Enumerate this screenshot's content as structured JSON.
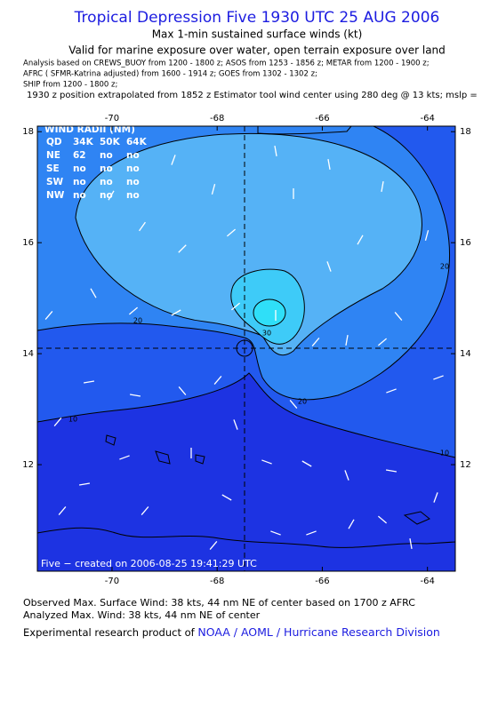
{
  "header": {
    "title": "Tropical Depression Five 1930 UTC 25 AUG 2006",
    "subtitle": "Max 1-min sustained surface winds (kt)",
    "validity": "Valid for marine exposure over water, open terrain exposure over land",
    "analysis_lines": [
      "Analysis based on  CREWS_BUOY from 1200 - 1800 z;  ASOS from 1253 - 1856 z;  METAR from 1200 - 1900 z;",
      "AFRC ( SFMR-Katrina adjusted) from 1600 - 1914 z;  GOES from 1302 - 1302 z;",
      "SHIP from 1200 - 1800 z;",
      "1930 z position extrapolated from 1852 z Estimator tool wind center using 280 deg @ 13 kts; mslp ="
    ]
  },
  "map": {
    "xlim": [
      -71.42,
      -63.47
    ],
    "ylim": [
      10.08,
      18.1
    ],
    "xticks": [
      -70,
      -68,
      -66,
      -64
    ],
    "yticks": [
      12,
      14,
      16,
      18
    ],
    "contour_labels": [
      20,
      30,
      10,
      20,
      10,
      20
    ],
    "credit": "Five − created on 2006-08-25 19:41:29 UTC"
  },
  "wind_radii": {
    "title": "WIND RADII (NM)",
    "columns": [
      "QD",
      "34K",
      "50K",
      "64K"
    ],
    "rows": [
      [
        "NE",
        62,
        "no",
        "no"
      ],
      [
        "SE",
        "no",
        "no",
        "no"
      ],
      [
        "SW",
        "no",
        "no",
        "no"
      ],
      [
        "NW",
        "no",
        "no",
        "no"
      ]
    ]
  },
  "footer": {
    "observed": "Observed Max. Surface Wind: 38 kts, 44 nm NE of center based on 1700 z AFRC",
    "analyzed": "Analyzed Max. Wind: 38 kts, 44 nm NE of center",
    "product_prefix": "Experimental research product of",
    "product_link": "NOAA / AOML / Hurricane Research Division"
  }
}
